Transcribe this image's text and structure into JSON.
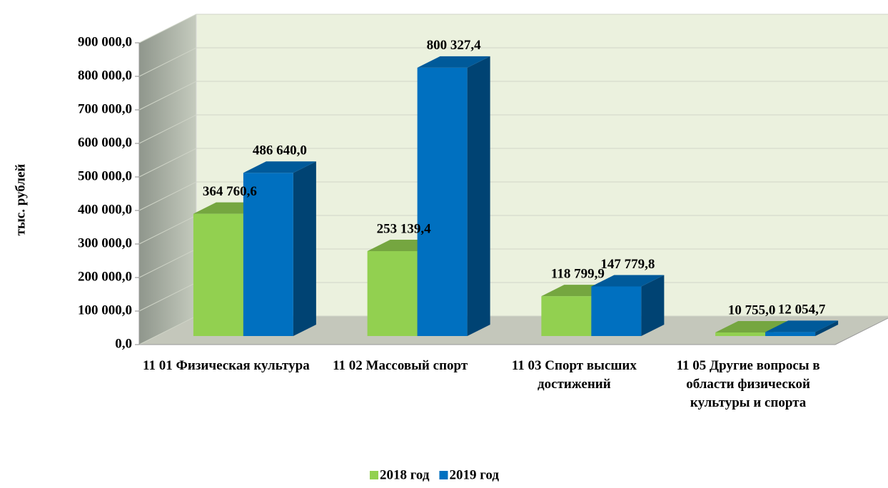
{
  "chart_data": {
    "type": "bar3d",
    "y_label": "тыс. рублей",
    "categories": [
      "11 01 Физическая культура",
      "11 02 Массовый спорт",
      "11 03 Спорт высших достижений",
      "11 05 Другие вопросы в области физической культуры и спорта"
    ],
    "series": [
      {
        "name": "2018 год",
        "color": "#92d050",
        "values": [
          364760.6,
          253139.4,
          118799.9,
          10755.0
        ],
        "value_labels": [
          "364 760,6",
          "253 139,4",
          "118 799,9",
          "10 755,0"
        ]
      },
      {
        "name": "2019 год",
        "color": "#0070c0",
        "values": [
          486640.0,
          800327.4,
          147779.8,
          12054.7
        ],
        "value_labels": [
          "486 640,0",
          "800 327,4",
          "147 779,8",
          "12 054,7"
        ]
      }
    ],
    "ylim": [
      0,
      900000
    ],
    "yticks": [
      {
        "value": 0,
        "label": "0,0"
      },
      {
        "value": 100000,
        "label": "100 000,0"
      },
      {
        "value": 200000,
        "label": "200 000,0"
      },
      {
        "value": 300000,
        "label": "300 000,0"
      },
      {
        "value": 400000,
        "label": "400 000,0"
      },
      {
        "value": 500000,
        "label": "500 000,0"
      },
      {
        "value": 600000,
        "label": "600 000,0"
      },
      {
        "value": 700000,
        "label": "700 000,0"
      },
      {
        "value": 800000,
        "label": "800 000,0"
      },
      {
        "value": 900000,
        "label": "900 000,0"
      }
    ],
    "grid": true,
    "legend": "bottom"
  }
}
